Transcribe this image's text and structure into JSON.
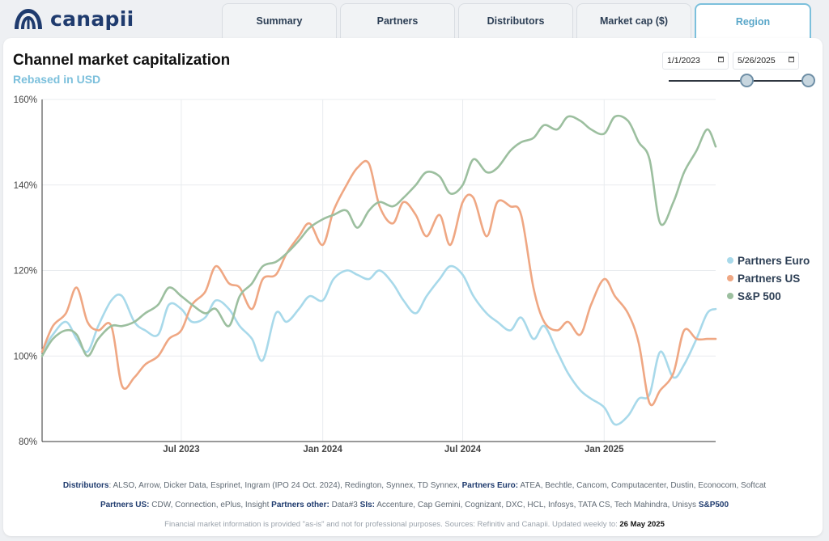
{
  "app": {
    "brand": "canapii",
    "tabs": [
      {
        "label": "Summary",
        "active": false
      },
      {
        "label": "Partners",
        "active": false
      },
      {
        "label": "Distributors",
        "active": false
      },
      {
        "label": "Market cap ($)",
        "active": false
      },
      {
        "label": "Region",
        "active": true
      }
    ],
    "accent_color": "#7cc0dc",
    "brand_color": "#1f3b6e"
  },
  "controls": {
    "start_date": "1/1/2023",
    "end_date": "5/26/2025"
  },
  "footer": {
    "distributors_label": "Distributors",
    "distributors_text": "ALSO, Arrow, Dicker Data, Esprinet, Ingram (IPO 24 Oct. 2024), Redington, Synnex, TD Synnex,",
    "partners_euro_label": "Partners Euro:",
    "partners_euro_text": "ATEA, Bechtle, Cancom, Computacenter, Dustin, Econocom, Softcat",
    "partners_us_label": "Partners US:",
    "partners_us_text": "CDW, Connection, ePlus, Insight",
    "partners_other_label": "Partners other:",
    "partners_other_text": "Data#3",
    "sis_label": "SIs:",
    "sis_text": "Accenture, Cap Gemini, Cognizant, DXC, HCL, Infosys, TATA CS, Tech Mahindra, Unisys",
    "sp500_label": "S&P500",
    "disclaimer": "Financial market information is provided \"as-is\" and not for professional purposes. Sources: Refinitiv and Canapii. Updated weekly to:",
    "updated_date": "26 May 2025"
  },
  "chart_data": {
    "type": "line",
    "title": "Channel market capitalization",
    "subtitle": "Rebased in USD",
    "x_ticks": [
      "Jul 2023",
      "Jan 2024",
      "Jul 2024",
      "Jan 2025"
    ],
    "xlim": [
      "2023-01-01",
      "2025-05-26"
    ],
    "ylim": [
      80,
      160
    ],
    "y_ticks": [
      "80%",
      "100%",
      "120%",
      "140%",
      "160%"
    ],
    "grid": true,
    "legend": "right",
    "series": [
      {
        "name": "Partners Euro",
        "color": "#a8d9ea",
        "x": [
          "2023-01-01",
          "2023-01-15",
          "2023-02-01",
          "2023-02-15",
          "2023-03-01",
          "2023-03-15",
          "2023-04-01",
          "2023-04-15",
          "2023-05-01",
          "2023-05-15",
          "2023-06-01",
          "2023-06-15",
          "2023-07-01",
          "2023-07-15",
          "2023-08-01",
          "2023-08-15",
          "2023-09-01",
          "2023-09-15",
          "2023-10-01",
          "2023-10-15",
          "2023-11-01",
          "2023-11-15",
          "2023-12-01",
          "2023-12-15",
          "2024-01-01",
          "2024-01-15",
          "2024-02-01",
          "2024-02-15",
          "2024-03-01",
          "2024-03-15",
          "2024-04-01",
          "2024-04-15",
          "2024-05-01",
          "2024-05-15",
          "2024-06-01",
          "2024-06-15",
          "2024-07-01",
          "2024-07-15",
          "2024-08-01",
          "2024-08-15",
          "2024-09-01",
          "2024-09-15",
          "2024-10-01",
          "2024-10-15",
          "2024-11-01",
          "2024-11-15",
          "2024-12-01",
          "2024-12-15",
          "2025-01-01",
          "2025-01-15",
          "2025-02-01",
          "2025-02-15",
          "2025-03-01",
          "2025-03-15",
          "2025-04-01",
          "2025-04-15",
          "2025-05-01",
          "2025-05-15",
          "2025-05-26"
        ],
        "values": [
          101,
          105,
          108,
          104,
          101,
          107,
          113,
          114,
          108,
          106,
          105,
          112,
          111,
          108,
          109,
          113,
          111,
          107,
          104,
          99,
          110,
          108,
          111,
          114,
          113,
          118,
          120,
          119,
          118,
          120,
          117,
          113,
          110,
          114,
          118,
          121,
          119,
          114,
          110,
          108,
          106,
          109,
          104,
          107,
          101,
          96,
          92,
          90,
          88,
          84,
          86,
          90,
          91,
          101,
          95,
          98,
          104,
          110,
          111
        ]
      },
      {
        "name": "Partners US",
        "color": "#efa783",
        "x": [
          "2023-01-01",
          "2023-01-15",
          "2023-02-01",
          "2023-02-15",
          "2023-03-01",
          "2023-03-15",
          "2023-04-01",
          "2023-04-15",
          "2023-05-01",
          "2023-05-15",
          "2023-06-01",
          "2023-06-15",
          "2023-07-01",
          "2023-07-15",
          "2023-08-01",
          "2023-08-15",
          "2023-09-01",
          "2023-09-15",
          "2023-10-01",
          "2023-10-15",
          "2023-11-01",
          "2023-11-15",
          "2023-12-01",
          "2023-12-15",
          "2024-01-01",
          "2024-01-15",
          "2024-02-01",
          "2024-02-15",
          "2024-03-01",
          "2024-03-15",
          "2024-04-01",
          "2024-04-15",
          "2024-05-01",
          "2024-05-15",
          "2024-06-01",
          "2024-06-15",
          "2024-07-01",
          "2024-07-15",
          "2024-08-01",
          "2024-08-15",
          "2024-09-01",
          "2024-09-15",
          "2024-10-01",
          "2024-10-15",
          "2024-11-01",
          "2024-11-15",
          "2024-12-01",
          "2024-12-15",
          "2025-01-01",
          "2025-01-15",
          "2025-02-01",
          "2025-02-15",
          "2025-03-01",
          "2025-03-15",
          "2025-04-01",
          "2025-04-15",
          "2025-05-01",
          "2025-05-15",
          "2025-05-26"
        ],
        "values": [
          101,
          107,
          110,
          116,
          108,
          106,
          107,
          93,
          95,
          98,
          100,
          104,
          106,
          112,
          115,
          121,
          117,
          116,
          111,
          118,
          119,
          124,
          128,
          131,
          126,
          134,
          140,
          144,
          145,
          135,
          131,
          136,
          133,
          128,
          133,
          126,
          136,
          137,
          128,
          136,
          135,
          133,
          116,
          108,
          106,
          108,
          105,
          112,
          118,
          114,
          110,
          103,
          89,
          92,
          96,
          106,
          104,
          104,
          104
        ]
      },
      {
        "name": "S&P 500",
        "color": "#9cbf9f",
        "x": [
          "2023-01-01",
          "2023-01-15",
          "2023-02-01",
          "2023-02-15",
          "2023-03-01",
          "2023-03-15",
          "2023-04-01",
          "2023-04-15",
          "2023-05-01",
          "2023-05-15",
          "2023-06-01",
          "2023-06-15",
          "2023-07-01",
          "2023-07-15",
          "2023-08-01",
          "2023-08-15",
          "2023-09-01",
          "2023-09-15",
          "2023-10-01",
          "2023-10-15",
          "2023-11-01",
          "2023-11-15",
          "2023-12-01",
          "2023-12-15",
          "2024-01-01",
          "2024-01-15",
          "2024-02-01",
          "2024-02-15",
          "2024-03-01",
          "2024-03-15",
          "2024-04-01",
          "2024-04-15",
          "2024-05-01",
          "2024-05-15",
          "2024-06-01",
          "2024-06-15",
          "2024-07-01",
          "2024-07-15",
          "2024-08-01",
          "2024-08-15",
          "2024-09-01",
          "2024-09-15",
          "2024-10-01",
          "2024-10-15",
          "2024-11-01",
          "2024-11-15",
          "2024-12-01",
          "2024-12-15",
          "2025-01-01",
          "2025-01-15",
          "2025-02-01",
          "2025-02-15",
          "2025-03-01",
          "2025-03-15",
          "2025-04-01",
          "2025-04-15",
          "2025-05-01",
          "2025-05-15",
          "2025-05-26"
        ],
        "values": [
          100,
          104,
          106,
          105,
          100,
          104,
          107,
          107,
          108,
          110,
          112,
          116,
          114,
          112,
          110,
          111,
          107,
          114,
          117,
          121,
          122,
          124,
          127,
          130,
          132,
          133,
          134,
          130,
          134,
          136,
          135,
          137,
          140,
          143,
          142,
          138,
          140,
          146,
          143,
          144,
          148,
          150,
          151,
          154,
          153,
          156,
          155,
          153,
          152,
          156,
          155,
          150,
          146,
          131,
          136,
          143,
          148,
          153,
          149
        ]
      }
    ]
  }
}
